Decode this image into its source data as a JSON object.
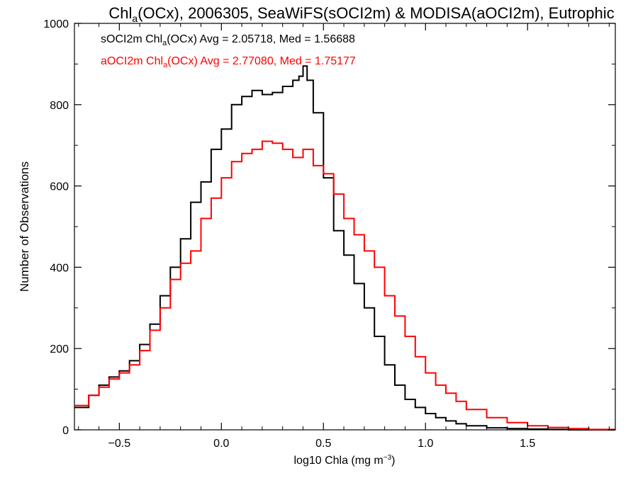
{
  "chart_data": {
    "type": "line",
    "title": {
      "pre": "Chl",
      "sub": "a",
      "post": "(OCx), 2006305, SeaWiFS(sOCI2m) & MODISA(aOCI2m), Eutrophic"
    },
    "xlabel": {
      "pre": "log10 Chla (mg m",
      "sup": "−3",
      "post": ")"
    },
    "ylabel": "Number of Observations",
    "xlim": [
      -0.72,
      1.93
    ],
    "ylim": [
      0,
      1000
    ],
    "xticks": [
      -0.5,
      0.0,
      0.5,
      1.0,
      1.5
    ],
    "xtick_labels": [
      "−0.5",
      "0.0",
      "0.5",
      "1.0",
      "1.5"
    ],
    "yticks": [
      0,
      200,
      400,
      600,
      800,
      1000
    ],
    "ytick_labels": [
      "0",
      "200",
      "400",
      "600",
      "800",
      "1000"
    ],
    "grid": false,
    "legend_position": "top-left",
    "series": [
      {
        "name": "sOCI2m",
        "color": "#000000",
        "label": {
          "pre": "sOCI2m Chl",
          "sub": "a",
          "post": "(OCx) Avg = 2.05718, Med = 1.56688"
        },
        "x": [
          -0.72,
          -0.65,
          -0.6,
          -0.55,
          -0.5,
          -0.45,
          -0.4,
          -0.35,
          -0.3,
          -0.25,
          -0.2,
          -0.15,
          -0.1,
          -0.05,
          0.0,
          0.05,
          0.1,
          0.15,
          0.2,
          0.25,
          0.3,
          0.35,
          0.38,
          0.4,
          0.42,
          0.45,
          0.5,
          0.55,
          0.6,
          0.65,
          0.7,
          0.75,
          0.8,
          0.85,
          0.9,
          0.95,
          1.0,
          1.05,
          1.1,
          1.15,
          1.2,
          1.3,
          1.4,
          1.5,
          1.6,
          1.7,
          1.8,
          1.93
        ],
        "y": [
          55,
          85,
          110,
          130,
          145,
          170,
          210,
          260,
          330,
          400,
          470,
          560,
          610,
          690,
          740,
          800,
          820,
          835,
          825,
          830,
          845,
          860,
          870,
          895,
          860,
          780,
          620,
          490,
          430,
          360,
          300,
          230,
          160,
          110,
          75,
          55,
          40,
          30,
          22,
          15,
          10,
          5,
          3,
          2,
          1,
          0,
          0,
          0
        ]
      },
      {
        "name": "aOCI2m",
        "color": "#ff0000",
        "label": {
          "pre": "aOCI2m Chl",
          "sub": "a",
          "post": "(OCx) Avg = 2.77080, Med = 1.75177"
        },
        "x": [
          -0.72,
          -0.65,
          -0.6,
          -0.55,
          -0.5,
          -0.45,
          -0.4,
          -0.35,
          -0.3,
          -0.25,
          -0.2,
          -0.15,
          -0.1,
          -0.05,
          0.0,
          0.05,
          0.1,
          0.15,
          0.2,
          0.25,
          0.3,
          0.35,
          0.4,
          0.45,
          0.5,
          0.55,
          0.6,
          0.65,
          0.7,
          0.75,
          0.8,
          0.85,
          0.9,
          0.95,
          1.0,
          1.05,
          1.1,
          1.15,
          1.2,
          1.3,
          1.4,
          1.5,
          1.6,
          1.7,
          1.8,
          1.93
        ],
        "y": [
          60,
          85,
          105,
          125,
          140,
          160,
          195,
          245,
          300,
          370,
          410,
          440,
          520,
          570,
          620,
          660,
          680,
          690,
          710,
          705,
          690,
          670,
          690,
          650,
          630,
          580,
          520,
          480,
          440,
          400,
          330,
          280,
          230,
          180,
          140,
          110,
          90,
          70,
          50,
          30,
          18,
          10,
          6,
          3,
          1,
          0
        ]
      }
    ]
  }
}
